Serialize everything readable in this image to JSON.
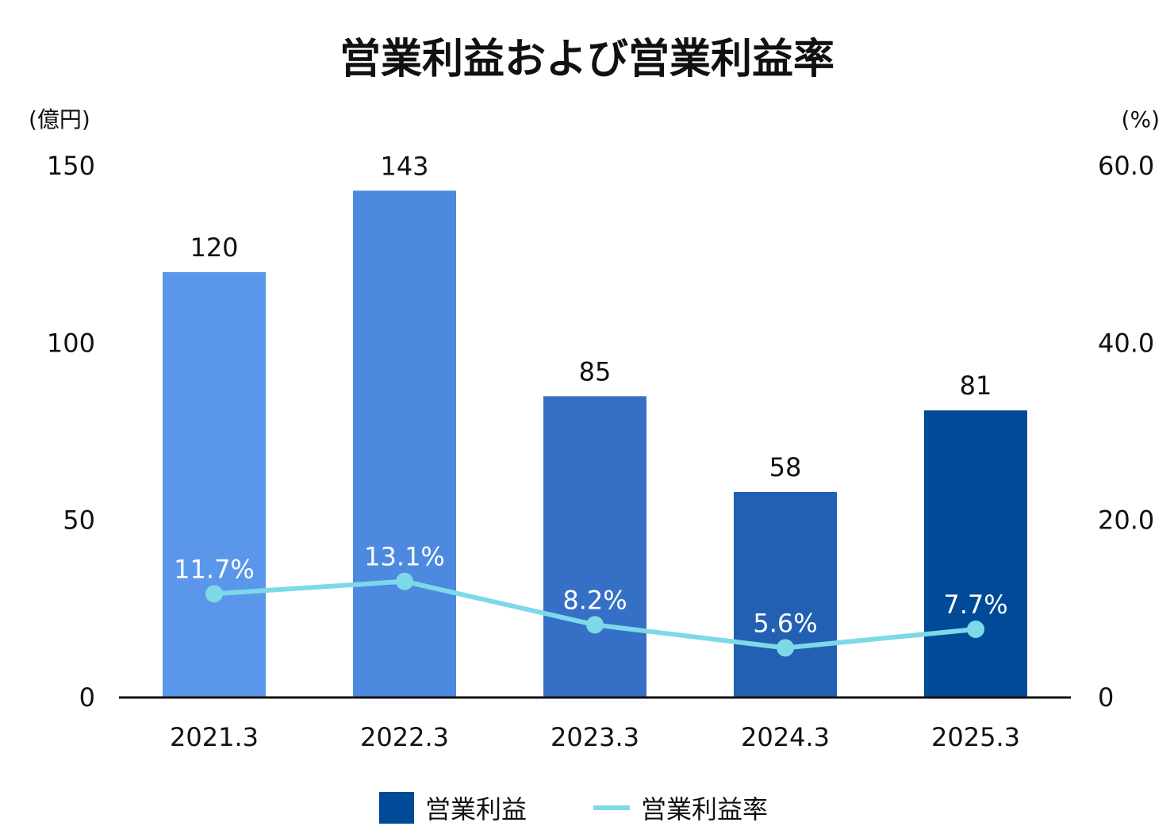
{
  "chart_data": {
    "type": "bar",
    "title": "営業利益および営業利益率",
    "left_unit": "(億円)",
    "right_unit": "(%)",
    "categories": [
      "2021.3",
      "2022.3",
      "2023.3",
      "2024.3",
      "2025.3"
    ],
    "series": [
      {
        "name": "営業利益",
        "type": "bar",
        "axis": "left",
        "values": [
          120,
          143,
          85,
          58,
          81
        ],
        "value_labels": [
          "120",
          "143",
          "85",
          "58",
          "81"
        ],
        "colors": [
          "#5a97ea",
          "#4d89df",
          "#3570c6",
          "#2260b3",
          "#004a98"
        ]
      },
      {
        "name": "営業利益率",
        "type": "line",
        "axis": "right",
        "values": [
          11.7,
          13.1,
          8.2,
          5.6,
          7.7
        ],
        "value_labels": [
          "11.7%",
          "13.1%",
          "8.2%",
          "5.6%",
          "7.7%"
        ],
        "color": "#7dd9e8"
      }
    ],
    "left_axis": {
      "min": 0,
      "max": 150,
      "ticks": [
        0,
        50,
        100,
        150
      ],
      "tick_labels": [
        "0",
        "50",
        "100",
        "150"
      ]
    },
    "right_axis": {
      "min": 0,
      "max": 60,
      "ticks": [
        0,
        20,
        40,
        60
      ],
      "tick_labels": [
        "0",
        "20.0",
        "40.0",
        "60.0"
      ]
    },
    "grid": false,
    "legend_position": "bottom-center",
    "legend": [
      {
        "name": "営業利益",
        "symbol": "square",
        "color": "#004a98"
      },
      {
        "name": "営業利益率",
        "symbol": "line",
        "color": "#7dd9e8"
      }
    ]
  }
}
